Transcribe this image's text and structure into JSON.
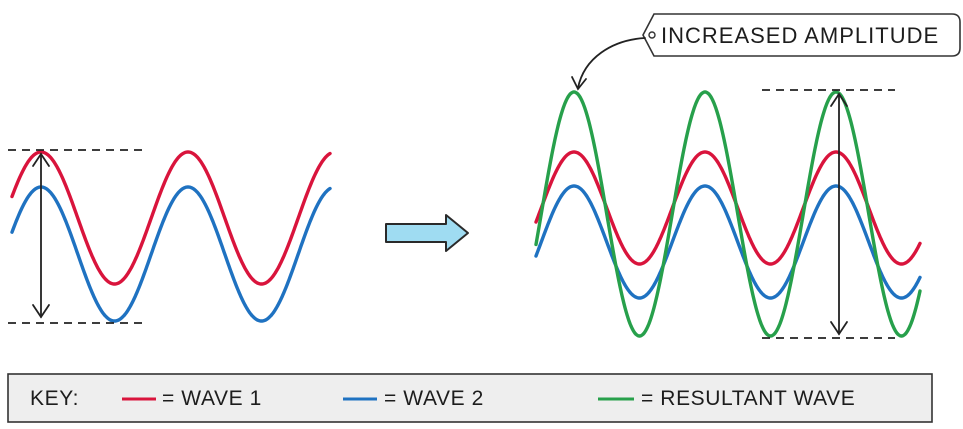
{
  "callout": {
    "label": "INCREASED AMPLITUDE"
  },
  "key": {
    "title": "KEY:",
    "items": [
      {
        "label": "= WAVE 1",
        "color": "#d9143c"
      },
      {
        "label": "= WAVE 2",
        "color": "#1f72c1"
      },
      {
        "label": "= RESULTANT WAVE",
        "color": "#27a04b"
      }
    ]
  },
  "colors": {
    "wave1": "#d9143c",
    "wave2": "#1f72c1",
    "resultant": "#27a04b",
    "transition_arrow_fill": "#9fdcf2",
    "transition_arrow_stroke": "#2a2a2a",
    "key_background": "#eeeeee",
    "key_border": "#333333"
  }
}
